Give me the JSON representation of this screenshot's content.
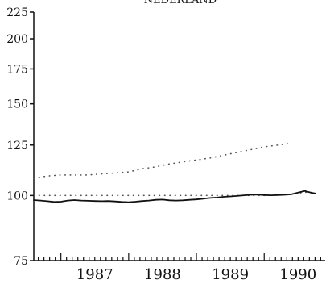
{
  "chart_data": {
    "type": "line",
    "title": "NEDERLAND",
    "xlabel": "",
    "ylabel": "",
    "y_scale": "log",
    "ylim": [
      75,
      225
    ],
    "xlim": [
      1986.6,
      1990.9
    ],
    "y_ticks": [
      75,
      100,
      125,
      150,
      175,
      200,
      225
    ],
    "x_ticks": [
      1987,
      1988,
      1989,
      1990
    ],
    "grid": false,
    "legend": "none",
    "series": [
      {
        "style": "dotted",
        "color": "#555555",
        "x": [
          1986.6,
          1986.8,
          1987.0,
          1987.2,
          1987.4,
          1987.6,
          1987.8,
          1988.0,
          1988.2,
          1988.4,
          1988.6,
          1988.8,
          1989.0,
          1989.2,
          1989.4,
          1989.6,
          1989.8,
          1990.0,
          1990.2,
          1990.4
        ],
        "values": [
          108,
          109,
          109.5,
          109.5,
          109.5,
          110,
          110.5,
          111,
          112.5,
          113.5,
          115,
          116,
          117,
          118,
          119.5,
          121,
          122.5,
          124,
          125,
          126
        ]
      },
      {
        "style": "dotted",
        "color": "#555555",
        "x": [
          1986.6,
          1987.0,
          1987.5,
          1988.0,
          1988.5,
          1989.0,
          1989.5,
          1990.0,
          1990.4,
          1990.6,
          1990.75
        ],
        "values": [
          100,
          100,
          100,
          100,
          100,
          100,
          100,
          100,
          100.5,
          101.5,
          101
        ]
      },
      {
        "style": "solid",
        "color": "#111111",
        "x": [
          1986.6,
          1986.7,
          1986.8,
          1986.9,
          1987.0,
          1987.1,
          1987.2,
          1987.3,
          1987.4,
          1987.5,
          1987.6,
          1987.7,
          1987.8,
          1987.9,
          1988.0,
          1988.1,
          1988.2,
          1988.3,
          1988.4,
          1988.5,
          1988.6,
          1988.7,
          1988.8,
          1988.9,
          1989.0,
          1989.1,
          1989.2,
          1989.3,
          1989.4,
          1989.5,
          1989.6,
          1989.7,
          1989.8,
          1989.9,
          1990.0,
          1990.1,
          1990.2,
          1990.3,
          1990.4,
          1990.5,
          1990.6,
          1990.7,
          1990.75
        ],
        "values": [
          98,
          97.8,
          97.5,
          97.2,
          97.3,
          97.8,
          98,
          97.8,
          97.7,
          97.6,
          97.5,
          97.6,
          97.4,
          97.2,
          97.1,
          97.3,
          97.6,
          97.8,
          98.1,
          98.2,
          97.9,
          97.8,
          97.9,
          98.1,
          98.3,
          98.6,
          98.9,
          99.1,
          99.4,
          99.6,
          99.8,
          100.1,
          100.3,
          100.4,
          100.2,
          100.1,
          100.2,
          100.3,
          100.5,
          101.3,
          102,
          101.2,
          100.9
        ]
      }
    ]
  }
}
